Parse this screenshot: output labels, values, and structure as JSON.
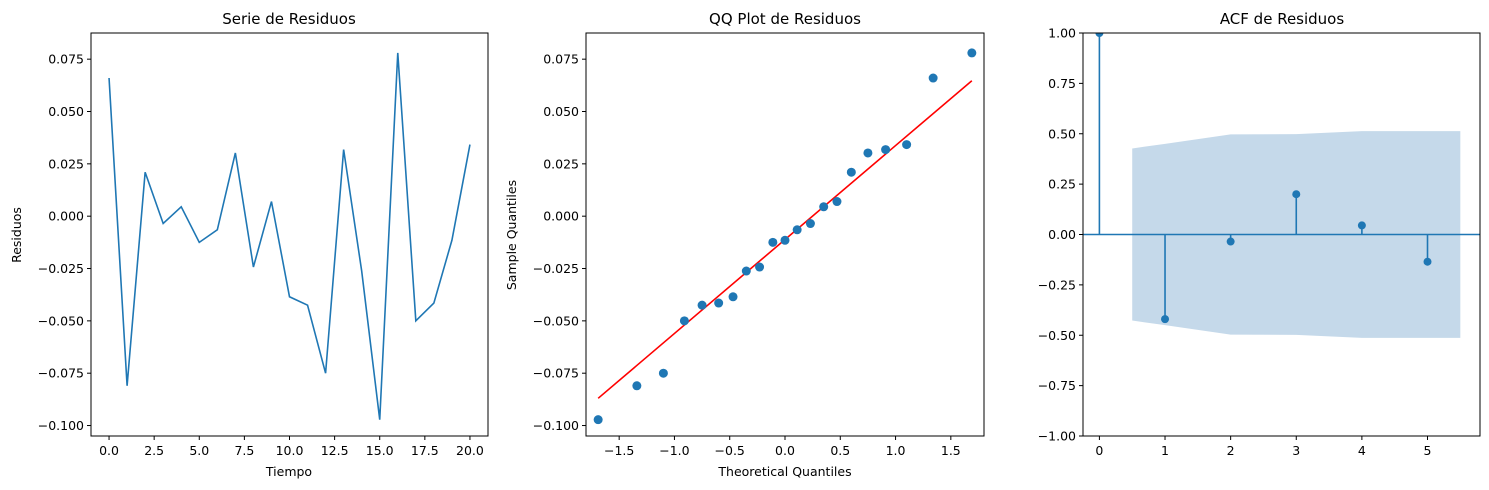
{
  "chart_data": [
    {
      "type": "line",
      "title": "Serie de Residuos",
      "xlabel": "Tiempo",
      "ylabel": "Residuos",
      "xlim": [
        -1.0,
        21.0
      ],
      "ylim": [
        -0.105,
        0.0875
      ],
      "xticks": [
        0.0,
        2.5,
        5.0,
        7.5,
        10.0,
        12.5,
        15.0,
        17.5,
        20.0
      ],
      "xtick_labels": [
        "0.0",
        "2.5",
        "5.0",
        "7.5",
        "10.0",
        "12.5",
        "15.0",
        "17.5",
        "20.0"
      ],
      "yticks": [
        -0.1,
        -0.075,
        -0.05,
        -0.025,
        0.0,
        0.025,
        0.05,
        0.075
      ],
      "ytick_labels": [
        "−0.100",
        "−0.075",
        "−0.050",
        "−0.025",
        "0.000",
        "0.025",
        "0.050",
        "0.075"
      ],
      "color": "#1f77b4",
      "x": [
        0,
        1,
        2,
        3,
        4,
        5,
        6,
        7,
        8,
        9,
        10,
        11,
        12,
        13,
        14,
        15,
        16,
        17,
        18,
        19,
        20
      ],
      "values": [
        0.066,
        -0.081,
        0.021,
        -0.0035,
        0.0045,
        -0.0125,
        -0.0065,
        0.0302,
        -0.0243,
        0.007,
        -0.0385,
        -0.0425,
        -0.075,
        0.0318,
        -0.0262,
        -0.0972,
        0.078,
        -0.05,
        -0.0415,
        -0.0115,
        0.0342
      ]
    },
    {
      "type": "scatter",
      "title": "QQ Plot de Residuos",
      "xlabel": "Theoretical Quantiles",
      "ylabel": "Sample Quantiles",
      "xlim": [
        -1.8,
        1.8
      ],
      "ylim": [
        -0.105,
        0.0875
      ],
      "xticks": [
        -1.5,
        -1.0,
        -0.5,
        0.0,
        0.5,
        1.0,
        1.5
      ],
      "xtick_labels": [
        "−1.5",
        "−1.0",
        "−0.5",
        "0.0",
        "0.5",
        "1.0",
        "1.5"
      ],
      "yticks": [
        -0.1,
        -0.075,
        -0.05,
        -0.025,
        0.0,
        0.025,
        0.05,
        0.075
      ],
      "ytick_labels": [
        "−0.100",
        "−0.075",
        "−0.050",
        "−0.025",
        "0.000",
        "0.025",
        "0.050",
        "0.075"
      ],
      "point_color": "#1f77b4",
      "line_color": "#ff0000",
      "x": [
        -1.69,
        -1.34,
        -1.1,
        -0.91,
        -0.75,
        -0.6,
        -0.47,
        -0.35,
        -0.23,
        -0.11,
        0.0,
        0.11,
        0.23,
        0.35,
        0.47,
        0.6,
        0.75,
        0.91,
        1.1,
        1.34,
        1.69
      ],
      "values": [
        -0.0972,
        -0.081,
        -0.075,
        -0.05,
        -0.0425,
        -0.0415,
        -0.0385,
        -0.0262,
        -0.0243,
        -0.0125,
        -0.0115,
        -0.0065,
        -0.0035,
        0.0045,
        0.007,
        0.021,
        0.0302,
        0.0318,
        0.0342,
        0.066,
        0.078
      ],
      "reference_line": {
        "x": [
          -1.69,
          1.69
        ],
        "y": [
          -0.087,
          0.0647
        ]
      }
    },
    {
      "type": "stem",
      "title": "ACF de Residuos",
      "xlabel": "",
      "ylabel": "",
      "xlim": [
        -0.25,
        5.8
      ],
      "ylim": [
        -1.0,
        1.0
      ],
      "xticks": [
        0,
        1,
        2,
        3,
        4,
        5
      ],
      "xtick_labels": [
        "0",
        "1",
        "2",
        "3",
        "4",
        "5"
      ],
      "yticks": [
        -1.0,
        -0.75,
        -0.5,
        -0.25,
        0.0,
        0.25,
        0.5,
        0.75,
        1.0
      ],
      "ytick_labels": [
        "−1.00",
        "−0.75",
        "−0.50",
        "−0.25",
        "0.00",
        "0.25",
        "0.50",
        "0.75",
        "1.00"
      ],
      "color": "#1f77b4",
      "band_color": "#c5d9ea",
      "lags": [
        0,
        1,
        2,
        3,
        4,
        5
      ],
      "values": [
        1.0,
        -0.42,
        -0.035,
        0.2,
        0.045,
        -0.135
      ],
      "confidence_band": {
        "x": [
          0.5,
          1.0,
          2.0,
          3.0,
          4.0,
          5.0,
          5.5
        ],
        "upper": [
          0.427,
          0.45,
          0.497,
          0.498,
          0.513,
          0.513,
          0.513
        ],
        "lower": [
          -0.427,
          -0.45,
          -0.497,
          -0.498,
          -0.513,
          -0.513,
          -0.513
        ]
      }
    }
  ]
}
